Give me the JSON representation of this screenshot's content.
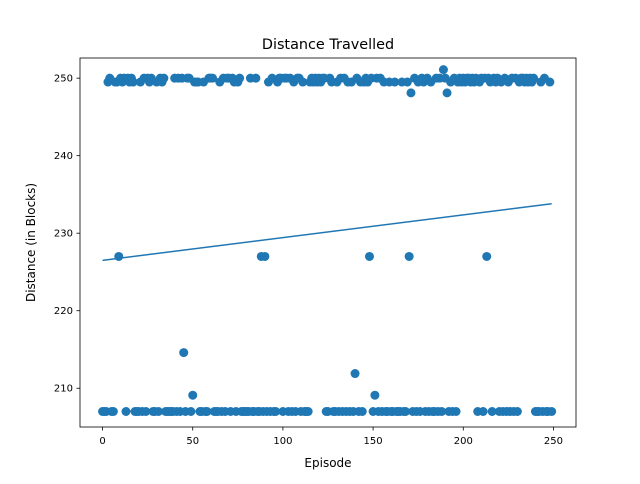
{
  "chart_data": {
    "type": "scatter",
    "title": "Distance Travelled",
    "xlabel": "Episode",
    "ylabel": "Distance (in Blocks)",
    "xlim": [
      -12.5,
      262.5
    ],
    "ylim": [
      205.0,
      252.6
    ],
    "xticks": [
      0,
      50,
      100,
      150,
      200,
      250
    ],
    "yticks": [
      210,
      220,
      230,
      240,
      250
    ],
    "grid": false,
    "color": "#1f77b4",
    "series": [
      {
        "points": [
          [
            0,
            207
          ],
          [
            1,
            207
          ],
          [
            2,
            207
          ],
          [
            3,
            249.5
          ],
          [
            4,
            250
          ],
          [
            5,
            207
          ],
          [
            6,
            207
          ],
          [
            7,
            249.5
          ],
          [
            8,
            249.5
          ],
          [
            9,
            227
          ],
          [
            10,
            250
          ],
          [
            11,
            249.5
          ],
          [
            12,
            250
          ],
          [
            13,
            207
          ],
          [
            14,
            250
          ],
          [
            15,
            249.5
          ],
          [
            16,
            250
          ],
          [
            17,
            249.5
          ],
          [
            18,
            207
          ],
          [
            19,
            207
          ],
          [
            20,
            207
          ],
          [
            21,
            249.5
          ],
          [
            22,
            207
          ],
          [
            23,
            250
          ],
          [
            24,
            207
          ],
          [
            25,
            250
          ],
          [
            26,
            249.5
          ],
          [
            27,
            250
          ],
          [
            28,
            207
          ],
          [
            29,
            207
          ],
          [
            30,
            249.5
          ],
          [
            31,
            207
          ],
          [
            32,
            250
          ],
          [
            33,
            249.5
          ],
          [
            34,
            250
          ],
          [
            35,
            207
          ],
          [
            36,
            207
          ],
          [
            37,
            207
          ],
          [
            38,
            207
          ],
          [
            39,
            207
          ],
          [
            40,
            250
          ],
          [
            41,
            207
          ],
          [
            42,
            250
          ],
          [
            43,
            207
          ],
          [
            44,
            250
          ],
          [
            45,
            214.6
          ],
          [
            46,
            207
          ],
          [
            47,
            250
          ],
          [
            48,
            250
          ],
          [
            49,
            207
          ],
          [
            50,
            209.1
          ],
          [
            51,
            249.5
          ],
          [
            52,
            249.5
          ],
          [
            53,
            249.5
          ],
          [
            54,
            207
          ],
          [
            55,
            207
          ],
          [
            56,
            249.5
          ],
          [
            57,
            207
          ],
          [
            58,
            207
          ],
          [
            59,
            250
          ],
          [
            60,
            250
          ],
          [
            61,
            250
          ],
          [
            62,
            207
          ],
          [
            63,
            207
          ],
          [
            64,
            207
          ],
          [
            65,
            249.5
          ],
          [
            66,
            207
          ],
          [
            67,
            250
          ],
          [
            68,
            207
          ],
          [
            69,
            250
          ],
          [
            70,
            250
          ],
          [
            71,
            207
          ],
          [
            72,
            250
          ],
          [
            73,
            249.5
          ],
          [
            74,
            207
          ],
          [
            75,
            249.5
          ],
          [
            76,
            250
          ],
          [
            77,
            207
          ],
          [
            78,
            207
          ],
          [
            79,
            207
          ],
          [
            80,
            207
          ],
          [
            81,
            207
          ],
          [
            82,
            250
          ],
          [
            83,
            207
          ],
          [
            84,
            207
          ],
          [
            85,
            250
          ],
          [
            86,
            207
          ],
          [
            87,
            207
          ],
          [
            88,
            227
          ],
          [
            89,
            207
          ],
          [
            90,
            227
          ],
          [
            91,
            207
          ],
          [
            92,
            249.5
          ],
          [
            93,
            207
          ],
          [
            94,
            250
          ],
          [
            95,
            207
          ],
          [
            96,
            207
          ],
          [
            97,
            249.5
          ],
          [
            98,
            250
          ],
          [
            99,
            250
          ],
          [
            100,
            207
          ],
          [
            101,
            250
          ],
          [
            102,
            250
          ],
          [
            103,
            207
          ],
          [
            104,
            250
          ],
          [
            105,
            207
          ],
          [
            106,
            249.5
          ],
          [
            107,
            207
          ],
          [
            108,
            250
          ],
          [
            109,
            250
          ],
          [
            110,
            207
          ],
          [
            111,
            249.5
          ],
          [
            112,
            207
          ],
          [
            113,
            207
          ],
          [
            114,
            207
          ],
          [
            115,
            249.5
          ],
          [
            116,
            250
          ],
          [
            117,
            249.5
          ],
          [
            118,
            250
          ],
          [
            119,
            249.5
          ],
          [
            120,
            250
          ],
          [
            121,
            249.5
          ],
          [
            122,
            250
          ],
          [
            123,
            250
          ],
          [
            124,
            207
          ],
          [
            125,
            207
          ],
          [
            126,
            250
          ],
          [
            127,
            249.5
          ],
          [
            128,
            207
          ],
          [
            129,
            207
          ],
          [
            130,
            249.5
          ],
          [
            131,
            207
          ],
          [
            132,
            250
          ],
          [
            133,
            207
          ],
          [
            134,
            250
          ],
          [
            135,
            207
          ],
          [
            136,
            249.5
          ],
          [
            137,
            207
          ],
          [
            138,
            249.5
          ],
          [
            139,
            207
          ],
          [
            140,
            211.9
          ],
          [
            141,
            250
          ],
          [
            142,
            207
          ],
          [
            143,
            249.5
          ],
          [
            144,
            207
          ],
          [
            145,
            249.5
          ],
          [
            146,
            250
          ],
          [
            147,
            249.5
          ],
          [
            148,
            227
          ],
          [
            149,
            250
          ],
          [
            150,
            207
          ],
          [
            151,
            209.1
          ],
          [
            152,
            250
          ],
          [
            153,
            207
          ],
          [
            154,
            250
          ],
          [
            155,
            207
          ],
          [
            156,
            249.5
          ],
          [
            157,
            207
          ],
          [
            158,
            207
          ],
          [
            159,
            249.5
          ],
          [
            160,
            207
          ],
          [
            161,
            207
          ],
          [
            162,
            249.5
          ],
          [
            163,
            207
          ],
          [
            164,
            207
          ],
          [
            165,
            207
          ],
          [
            166,
            249.5
          ],
          [
            167,
            207
          ],
          [
            168,
            207
          ],
          [
            169,
            249.5
          ],
          [
            170,
            227
          ],
          [
            171,
            248.1
          ],
          [
            172,
            207
          ],
          [
            173,
            250
          ],
          [
            174,
            207
          ],
          [
            175,
            249.5
          ],
          [
            176,
            207
          ],
          [
            177,
            250
          ],
          [
            178,
            249.5
          ],
          [
            179,
            207
          ],
          [
            180,
            250
          ],
          [
            181,
            207
          ],
          [
            182,
            249.5
          ],
          [
            183,
            207
          ],
          [
            184,
            207
          ],
          [
            185,
            250
          ],
          [
            186,
            207
          ],
          [
            187,
            250
          ],
          [
            188,
            207
          ],
          [
            189,
            251.1
          ],
          [
            190,
            250
          ],
          [
            191,
            248.1
          ],
          [
            192,
            207
          ],
          [
            193,
            249.5
          ],
          [
            194,
            207
          ],
          [
            195,
            250
          ],
          [
            196,
            207
          ],
          [
            197,
            249.5
          ],
          [
            198,
            250
          ],
          [
            199,
            249.5
          ],
          [
            200,
            250
          ],
          [
            201,
            249.5
          ],
          [
            202,
            250
          ],
          [
            203,
            250
          ],
          [
            204,
            249.5
          ],
          [
            205,
            250
          ],
          [
            206,
            249.5
          ],
          [
            207,
            250
          ],
          [
            208,
            207
          ],
          [
            209,
            249.5
          ],
          [
            210,
            250
          ],
          [
            211,
            207
          ],
          [
            212,
            250
          ],
          [
            213,
            227
          ],
          [
            214,
            250
          ],
          [
            215,
            249.5
          ],
          [
            216,
            207
          ],
          [
            217,
            250
          ],
          [
            218,
            249.5
          ],
          [
            219,
            250
          ],
          [
            220,
            207
          ],
          [
            221,
            249.5
          ],
          [
            222,
            207
          ],
          [
            223,
            250
          ],
          [
            224,
            207
          ],
          [
            225,
            249.5
          ],
          [
            226,
            207
          ],
          [
            227,
            250
          ],
          [
            228,
            207
          ],
          [
            229,
            250
          ],
          [
            230,
            207
          ],
          [
            231,
            249.5
          ],
          [
            232,
            250
          ],
          [
            233,
            250
          ],
          [
            234,
            249.5
          ],
          [
            235,
            250
          ],
          [
            236,
            249.5
          ],
          [
            237,
            250
          ],
          [
            238,
            249.5
          ],
          [
            239,
            250
          ],
          [
            240,
            207
          ],
          [
            241,
            207
          ],
          [
            242,
            207
          ],
          [
            243,
            249.5
          ],
          [
            244,
            207
          ],
          [
            245,
            250
          ],
          [
            246,
            207
          ],
          [
            247,
            207
          ],
          [
            248,
            249.5
          ],
          [
            249,
            207
          ]
        ]
      }
    ],
    "trendline": {
      "x": [
        0,
        249
      ],
      "y": [
        226.5,
        233.8
      ]
    }
  }
}
